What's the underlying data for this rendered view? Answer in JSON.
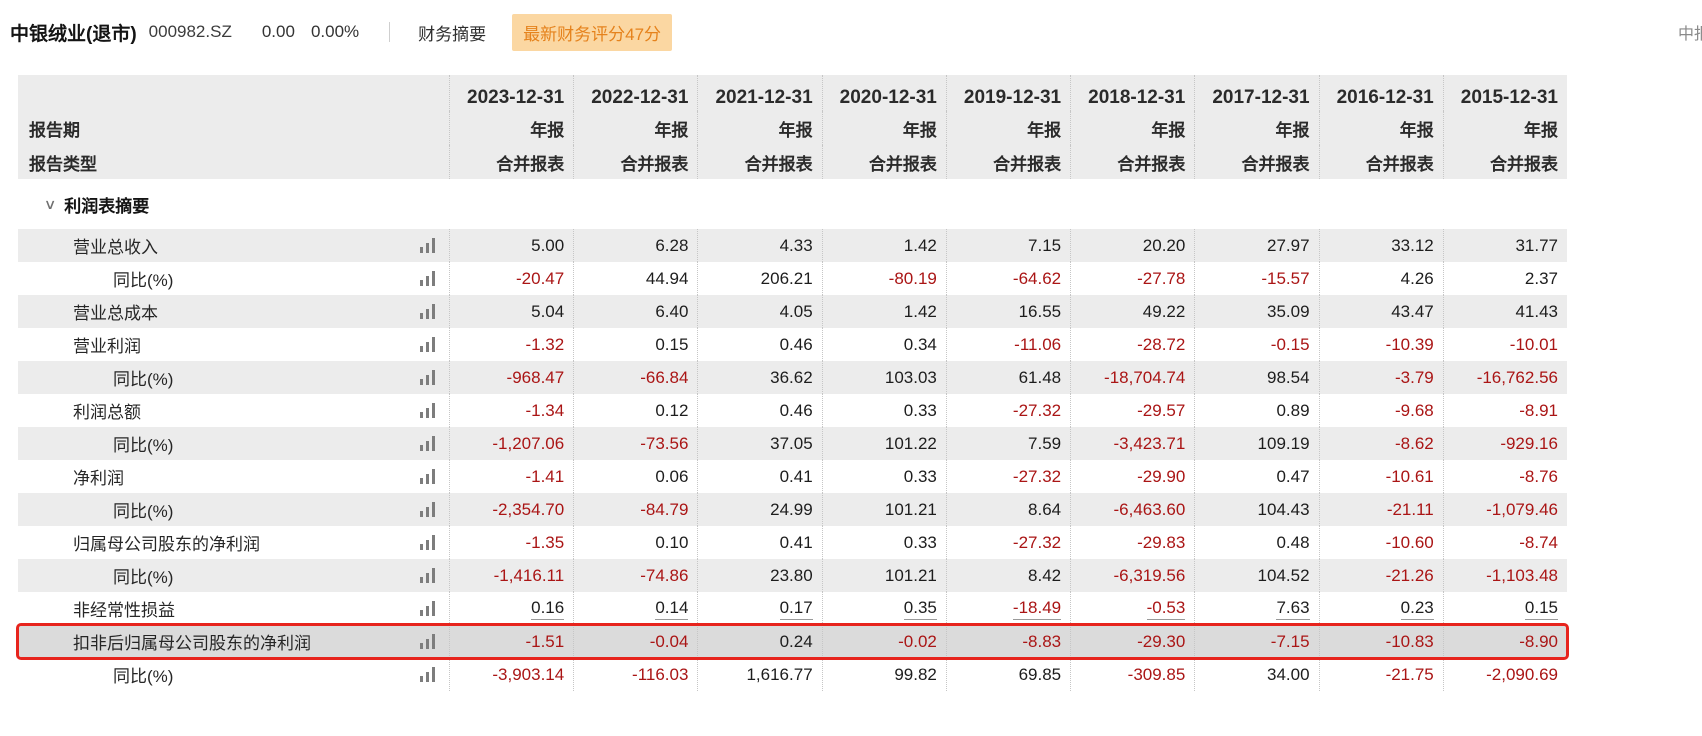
{
  "header": {
    "stock_name": "中银绒业(退市)",
    "stock_code": "000982.SZ",
    "price": "0.00",
    "change_pct": "0.00%",
    "tab_label": "财务摘要",
    "score_badge": "最新财务评分47分",
    "report_period_label": "中报",
    "badge_bg_color": "#fbd7a2",
    "badge_text_color": "#e5821c"
  },
  "table": {
    "row_headers": {
      "period": "报告期",
      "type": "报告类型"
    },
    "section_title": "利润表摘要",
    "colors": {
      "negative_value": "#aa1515",
      "highlight_border": "#e7241d",
      "zebra_row": "#ececec",
      "highlight_row": "#dbdbdb"
    },
    "columns": [
      {
        "date": "2023-12-31",
        "period": "年报",
        "type": "合并报表"
      },
      {
        "date": "2022-12-31",
        "period": "年报",
        "type": "合并报表"
      },
      {
        "date": "2021-12-31",
        "period": "年报",
        "type": "合并报表"
      },
      {
        "date": "2020-12-31",
        "period": "年报",
        "type": "合并报表"
      },
      {
        "date": "2019-12-31",
        "period": "年报",
        "type": "合并报表"
      },
      {
        "date": "2018-12-31",
        "period": "年报",
        "type": "合并报表"
      },
      {
        "date": "2017-12-31",
        "period": "年报",
        "type": "合并报表"
      },
      {
        "date": "2016-12-31",
        "period": "年报",
        "type": "合并报表"
      },
      {
        "date": "2015-12-31",
        "period": "年报",
        "type": "合并报表"
      }
    ],
    "rows": [
      {
        "label": "营业总收入",
        "indent": 1,
        "values": [
          "5.00",
          "6.28",
          "4.33",
          "1.42",
          "7.15",
          "20.20",
          "27.97",
          "33.12",
          "31.77"
        ]
      },
      {
        "label": "同比(%)",
        "indent": 2,
        "values": [
          "-20.47",
          "44.94",
          "206.21",
          "-80.19",
          "-64.62",
          "-27.78",
          "-15.57",
          "4.26",
          "2.37"
        ]
      },
      {
        "label": "营业总成本",
        "indent": 1,
        "values": [
          "5.04",
          "6.40",
          "4.05",
          "1.42",
          "16.55",
          "49.22",
          "35.09",
          "43.47",
          "41.43"
        ]
      },
      {
        "label": "营业利润",
        "indent": 1,
        "values": [
          "-1.32",
          "0.15",
          "0.46",
          "0.34",
          "-11.06",
          "-28.72",
          "-0.15",
          "-10.39",
          "-10.01"
        ]
      },
      {
        "label": "同比(%)",
        "indent": 2,
        "values": [
          "-968.47",
          "-66.84",
          "36.62",
          "103.03",
          "61.48",
          "-18,704.74",
          "98.54",
          "-3.79",
          "-16,762.56"
        ]
      },
      {
        "label": "利润总额",
        "indent": 1,
        "values": [
          "-1.34",
          "0.12",
          "0.46",
          "0.33",
          "-27.32",
          "-29.57",
          "0.89",
          "-9.68",
          "-8.91"
        ]
      },
      {
        "label": "同比(%)",
        "indent": 2,
        "values": [
          "-1,207.06",
          "-73.56",
          "37.05",
          "101.22",
          "7.59",
          "-3,423.71",
          "109.19",
          "-8.62",
          "-929.16"
        ]
      },
      {
        "label": "净利润",
        "indent": 1,
        "values": [
          "-1.41",
          "0.06",
          "0.41",
          "0.33",
          "-27.32",
          "-29.90",
          "0.47",
          "-10.61",
          "-8.76"
        ]
      },
      {
        "label": "同比(%)",
        "indent": 2,
        "values": [
          "-2,354.70",
          "-84.79",
          "24.99",
          "101.21",
          "8.64",
          "-6,463.60",
          "104.43",
          "-21.11",
          "-1,079.46"
        ]
      },
      {
        "label": "归属母公司股东的净利润",
        "indent": 1,
        "values": [
          "-1.35",
          "0.10",
          "0.41",
          "0.33",
          "-27.32",
          "-29.83",
          "0.48",
          "-10.60",
          "-8.74"
        ]
      },
      {
        "label": "同比(%)",
        "indent": 2,
        "values": [
          "-1,416.11",
          "-74.86",
          "23.80",
          "101.21",
          "8.42",
          "-6,319.56",
          "104.52",
          "-21.26",
          "-1,103.48"
        ]
      },
      {
        "label": "非经常性损益",
        "indent": 1,
        "underline": true,
        "values": [
          "0.16",
          "0.14",
          "0.17",
          "0.35",
          "-18.49",
          "-0.53",
          "7.63",
          "0.23",
          "0.15"
        ]
      },
      {
        "label": "扣非后归属母公司股东的净利润",
        "indent": 1,
        "highlight": true,
        "values": [
          "-1.51",
          "-0.04",
          "0.24",
          "-0.02",
          "-8.83",
          "-29.30",
          "-7.15",
          "-10.83",
          "-8.90"
        ]
      },
      {
        "label": "同比(%)",
        "indent": 2,
        "values": [
          "-3,903.14",
          "-116.03",
          "1,616.77",
          "99.82",
          "69.85",
          "-309.85",
          "34.00",
          "-21.75",
          "-2,090.69"
        ]
      }
    ]
  }
}
